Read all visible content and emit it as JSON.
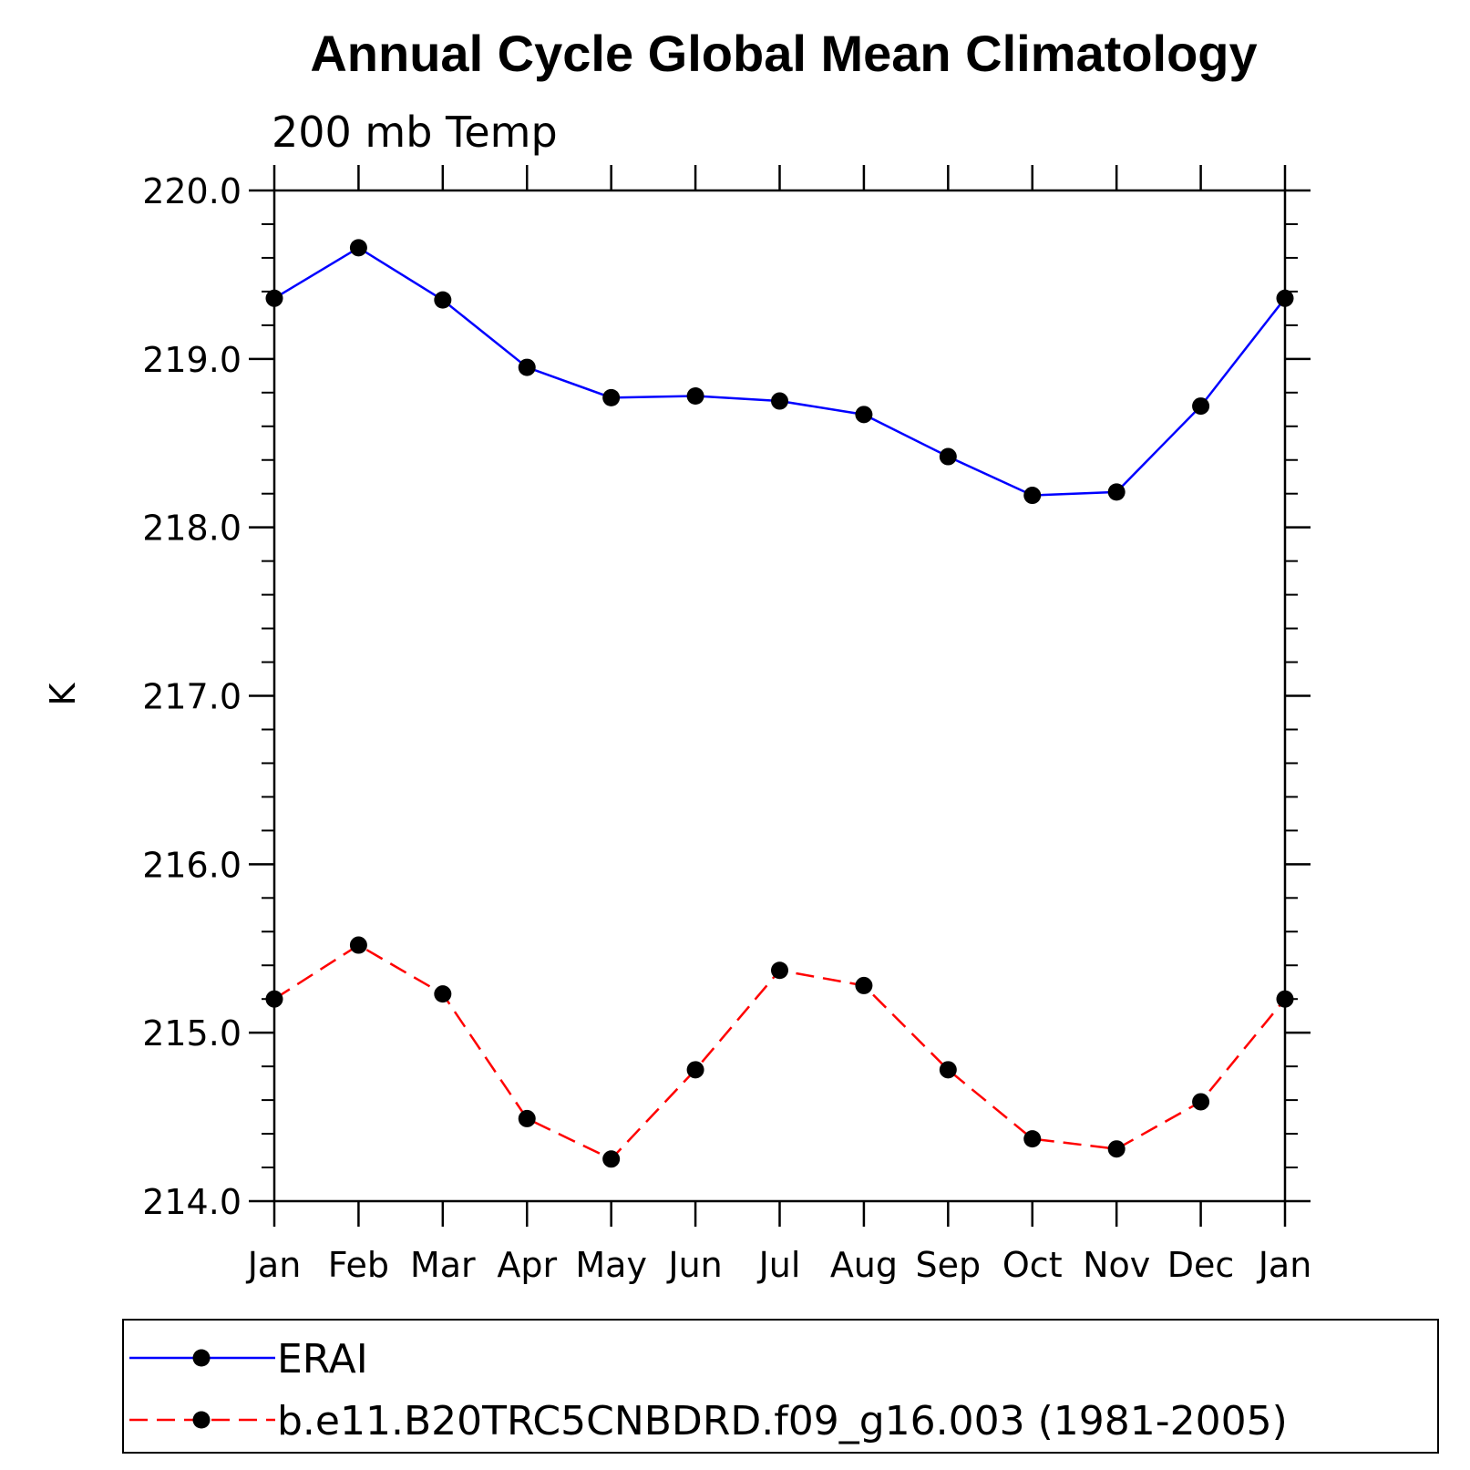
{
  "chart_data": {
    "type": "line",
    "title": "Annual Cycle Global Mean Climatology",
    "subtitle": "200 mb Temp",
    "xlabel": "",
    "ylabel": "K",
    "categories": [
      "Jan",
      "Feb",
      "Mar",
      "Apr",
      "May",
      "Jun",
      "Jul",
      "Aug",
      "Sep",
      "Oct",
      "Nov",
      "Dec",
      "Jan"
    ],
    "ylim": [
      214.0,
      220.0
    ],
    "yticks": [
      "214.0",
      "215.0",
      "216.0",
      "217.0",
      "218.0",
      "219.0",
      "220.0"
    ],
    "ytick_values": [
      214,
      215,
      216,
      217,
      218,
      219,
      220
    ],
    "y_minor_step": 0.2,
    "grid": false,
    "legend_position": "bottom",
    "series": [
      {
        "name": "ERAI",
        "color": "#0000ff",
        "style": "solid",
        "marker": "filled-circle",
        "values": [
          219.36,
          219.66,
          219.35,
          218.95,
          218.77,
          218.78,
          218.75,
          218.67,
          218.42,
          218.19,
          218.21,
          218.72,
          219.36
        ]
      },
      {
        "name": "b.e11.B20TRC5CNBDRD.f09_g16.003 (1981-2005)",
        "color": "#ff0000",
        "style": "dashed",
        "marker": "filled-circle",
        "values": [
          215.2,
          215.52,
          215.23,
          214.49,
          214.25,
          214.78,
          215.37,
          215.28,
          214.78,
          214.37,
          214.31,
          214.59,
          215.2
        ]
      }
    ]
  }
}
